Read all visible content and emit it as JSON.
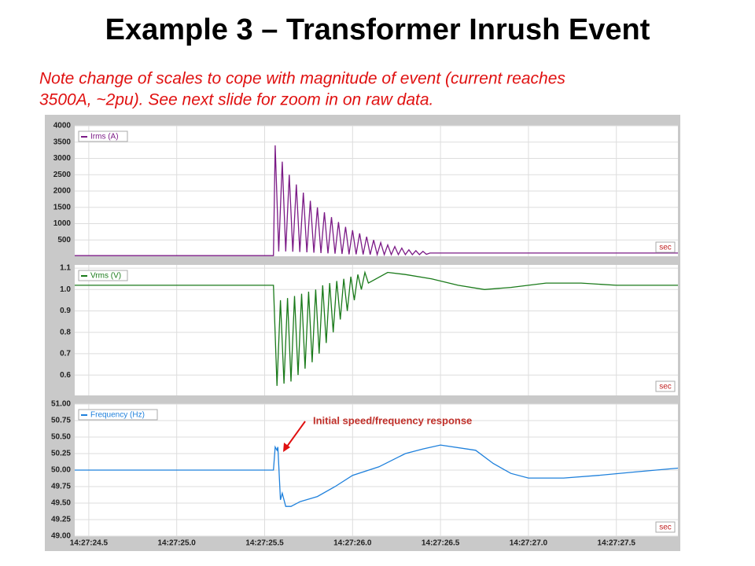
{
  "title": "Example 3 – Transformer Inrush Event",
  "subtitle_lines": [
    "Note change of scales to cope with magnitude of event (current reaches",
    "3500A, ~2pu).  See next slide for zoom in on raw data."
  ],
  "chart_data": [
    {
      "type": "line",
      "xlabel": "sec",
      "xlim": [
        24.42,
        27.85
      ],
      "ylim": [
        0,
        4000
      ],
      "yticks": [
        500,
        1000,
        1500,
        2000,
        2500,
        3000,
        3500,
        4000
      ],
      "xticks": [
        24.5,
        25,
        25.5,
        26,
        26.5,
        27,
        27.5
      ],
      "x": [
        24.42,
        25.55,
        25.56,
        25.58,
        25.6,
        25.62,
        25.64,
        25.66,
        25.68,
        25.7,
        25.72,
        25.74,
        25.76,
        25.78,
        25.8,
        25.82,
        25.84,
        25.86,
        25.88,
        25.9,
        25.92,
        25.94,
        25.96,
        25.98,
        26.0,
        26.02,
        26.04,
        26.06,
        26.08,
        26.1,
        26.12,
        26.14,
        26.16,
        26.18,
        26.2,
        26.22,
        26.24,
        26.26,
        26.28,
        26.3,
        26.32,
        26.34,
        26.36,
        26.38,
        26.4,
        26.42,
        26.44,
        27.85
      ],
      "series": [
        {
          "name": "Irms (A)",
          "color": "#7b1a86",
          "values": [
            20,
            20,
            3400,
            150,
            2900,
            150,
            2500,
            140,
            2200,
            130,
            1950,
            120,
            1700,
            110,
            1500,
            100,
            1350,
            90,
            1200,
            80,
            1050,
            70,
            900,
            60,
            800,
            60,
            700,
            55,
            600,
            50,
            500,
            50,
            420,
            50,
            350,
            50,
            300,
            50,
            250,
            50,
            200,
            50,
            170,
            50,
            150,
            60,
            100,
            100
          ]
        }
      ]
    },
    {
      "type": "line",
      "xlabel": "sec",
      "xlim": [
        24.42,
        27.85
      ],
      "ylim": [
        0.505,
        1.115
      ],
      "yticks": [
        0.6,
        0.7,
        0.8,
        0.9,
        {
          "value": 1,
          "label": "1.0"
        },
        1.1
      ],
      "xticks": [
        24.5,
        25,
        25.5,
        26,
        26.5,
        27,
        27.5
      ],
      "x": [
        24.42,
        25.55,
        25.57,
        25.59,
        25.61,
        25.63,
        25.65,
        25.67,
        25.69,
        25.71,
        25.73,
        25.75,
        25.77,
        25.79,
        25.81,
        25.83,
        25.85,
        25.87,
        25.89,
        25.91,
        25.93,
        25.95,
        25.97,
        25.99,
        26.01,
        26.03,
        26.05,
        26.07,
        26.09,
        26.2,
        26.3,
        26.45,
        26.6,
        26.75,
        26.9,
        27.1,
        27.3,
        27.5,
        27.85
      ],
      "series": [
        {
          "name": "Vrms (V)",
          "color": "#1a7a1a",
          "values": [
            1.02,
            1.02,
            0.55,
            0.95,
            0.56,
            0.96,
            0.57,
            0.97,
            0.6,
            0.98,
            0.63,
            0.99,
            0.66,
            1.0,
            0.7,
            1.02,
            0.75,
            1.03,
            0.8,
            1.04,
            0.86,
            1.05,
            0.9,
            1.06,
            0.95,
            1.07,
            1.0,
            1.08,
            1.03,
            1.08,
            1.07,
            1.05,
            1.02,
            1.0,
            1.01,
            1.03,
            1.03,
            1.02,
            1.02
          ]
        }
      ]
    },
    {
      "type": "line",
      "xlabel": "sec",
      "xlim": [
        24.42,
        27.85
      ],
      "ylim": [
        49,
        51
      ],
      "yticks": [
        {
          "value": 49,
          "label": "49.00"
        },
        {
          "value": 49.25,
          "label": "49.25"
        },
        {
          "value": 49.5,
          "label": "49.50"
        },
        {
          "value": 49.75,
          "label": "49.75"
        },
        {
          "value": 50,
          "label": "50.00"
        },
        {
          "value": 50.25,
          "label": "50.25"
        },
        {
          "value": 50.5,
          "label": "50.50"
        },
        {
          "value": 50.75,
          "label": "50.75"
        },
        {
          "value": 51,
          "label": "51.00"
        }
      ],
      "xticks": [
        {
          "value": 24.5,
          "label": "14:27:24.5"
        },
        {
          "value": 25,
          "label": "14:27:25.0"
        },
        {
          "value": 25.5,
          "label": "14:27:25.5"
        },
        {
          "value": 26,
          "label": "14:27:26.0"
        },
        {
          "value": 26.5,
          "label": "14:27:26.5"
        },
        {
          "value": 27,
          "label": "14:27:27.0"
        },
        {
          "value": 27.5,
          "label": "14:27:27.5"
        }
      ],
      "annotations": [
        "Initial speed/frequency response"
      ],
      "x": [
        24.42,
        25.55,
        25.56,
        25.57,
        25.575,
        25.59,
        25.6,
        25.62,
        25.65,
        25.7,
        25.8,
        25.9,
        26.0,
        26.15,
        26.3,
        26.4,
        26.5,
        26.7,
        26.8,
        26.9,
        27.0,
        27.2,
        27.4,
        27.6,
        27.85
      ],
      "series": [
        {
          "name": "Frequency (Hz)",
          "color": "#1e80dc",
          "values": [
            50.0,
            50.0,
            50.35,
            50.3,
            50.35,
            49.55,
            49.65,
            49.45,
            49.45,
            49.52,
            49.6,
            49.75,
            49.92,
            50.05,
            50.25,
            50.32,
            50.38,
            50.3,
            50.1,
            49.95,
            49.88,
            49.88,
            49.92,
            49.97,
            50.03
          ]
        }
      ]
    }
  ]
}
